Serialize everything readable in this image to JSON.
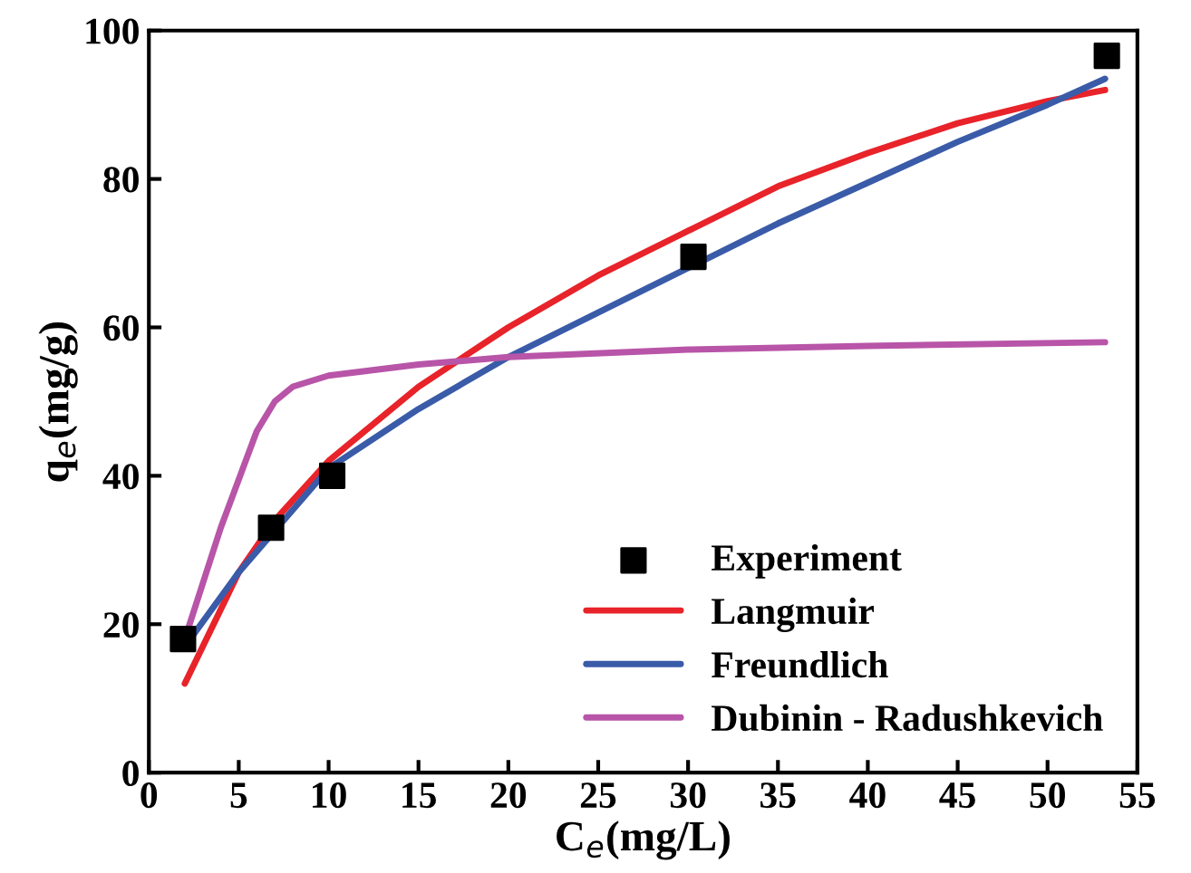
{
  "chart_data": {
    "type": "line",
    "xlabel": "C$_{e}$(mg/L)",
    "ylabel": "q$_{e}$(mg/g)",
    "xlim": [
      0,
      55
    ],
    "ylim": [
      0,
      100
    ],
    "xticks": [
      0,
      5,
      10,
      15,
      20,
      25,
      30,
      35,
      40,
      45,
      50,
      55
    ],
    "yticks": [
      0,
      20,
      40,
      60,
      80,
      100
    ],
    "grid": false,
    "legend": "bottom right",
    "series": [
      {
        "name": "Experiment",
        "type": "scatter",
        "marker": "square",
        "color": "#000000",
        "x": [
          1.9,
          6.8,
          10.2,
          30.3,
          53.3
        ],
        "values": [
          18,
          33,
          40,
          69.5,
          96.6
        ]
      },
      {
        "name": "Langmuir",
        "color": "#e8232a",
        "x": [
          2,
          5,
          7,
          10,
          15,
          20,
          25,
          30,
          35,
          40,
          45,
          50,
          53.2
        ],
        "values": [
          12,
          27,
          34,
          42,
          52,
          60,
          67,
          73,
          79,
          83.5,
          87.5,
          90.5,
          92
        ]
      },
      {
        "name": "Freundlich",
        "color": "#3a5ba8",
        "x": [
          2,
          5,
          10,
          15,
          20,
          25,
          30,
          35,
          40,
          45,
          50,
          53.2
        ],
        "values": [
          17,
          27,
          41,
          49,
          56,
          62,
          68,
          74,
          79.5,
          85,
          90,
          93.5
        ]
      },
      {
        "name": "Dubinin - Radushkevich",
        "color": "#b855a8",
        "x": [
          2,
          4,
          6,
          7,
          8,
          10,
          15,
          20,
          30,
          40,
          53.2
        ],
        "values": [
          18,
          33,
          46,
          50,
          52,
          53.5,
          55,
          56,
          57,
          57.5,
          58
        ]
      }
    ]
  }
}
